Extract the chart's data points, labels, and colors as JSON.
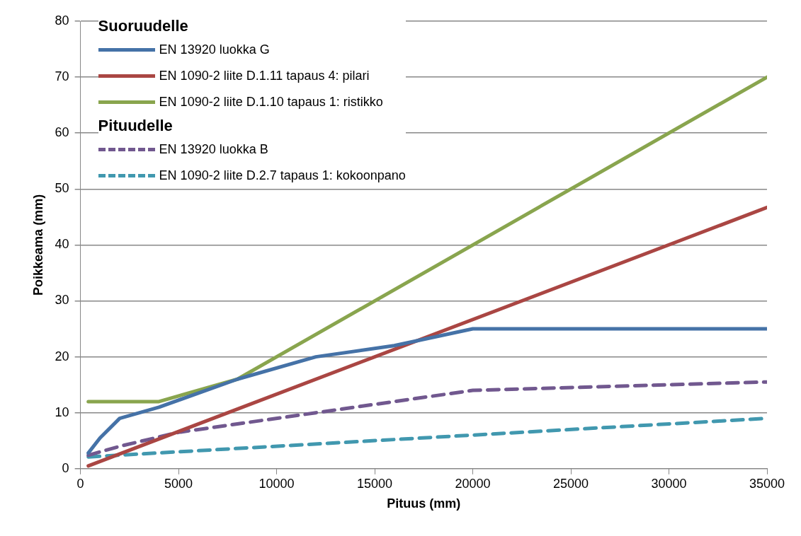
{
  "chart_data": {
    "type": "line",
    "xlabel": "Pituus (mm)",
    "ylabel": "Poikkeama (mm)",
    "xlim": [
      0,
      35000
    ],
    "xticks": [
      0,
      5000,
      10000,
      15000,
      20000,
      25000,
      30000,
      35000
    ],
    "ylim": [
      0,
      80
    ],
    "yticks": [
      0,
      10,
      20,
      30,
      40,
      50,
      60,
      70,
      80
    ],
    "grid": "y",
    "legend": "top left",
    "marker": "none",
    "annotations": [
      "Suoruudelle",
      "Pituudelle"
    ],
    "series": [
      {
        "name": "EN 13920 luokka G",
        "color": "#4572a7",
        "line_style": "solid",
        "x": [
          400,
          1000,
          2000,
          4000,
          8000,
          12000,
          16000,
          20000,
          35000
        ],
        "values": [
          2.8,
          5.5,
          9,
          11,
          16,
          20,
          22,
          25,
          25
        ]
      },
      {
        "name": "EN 1090-2 liite D.1.11 tapaus 4: pilari",
        "color": "#aa4643",
        "line_style": "solid",
        "x": [
          400,
          35000
        ],
        "values": [
          0.5,
          46.7
        ]
      },
      {
        "name": "EN 1090-2 liite D.1.10 tapaus 1: ristikko",
        "color": "#89a54e",
        "line_style": "solid",
        "x": [
          400,
          4000,
          8000,
          35000
        ],
        "values": [
          12,
          12,
          16,
          70
        ]
      },
      {
        "name": "EN 13920 luokka B",
        "color": "#71588f",
        "line_style": "dashed",
        "x": [
          400,
          2000,
          5000,
          8000,
          12000,
          20000,
          35000
        ],
        "values": [
          2.4,
          4,
          6.5,
          8,
          10,
          14,
          15.5
        ]
      },
      {
        "name": "EN 1090-2 liite D.2.7 tapaus 1: kokoonpano",
        "color": "#4198af",
        "line_style": "dashed",
        "x": [
          400,
          35000
        ],
        "values": [
          2.1,
          9
        ]
      }
    ]
  }
}
